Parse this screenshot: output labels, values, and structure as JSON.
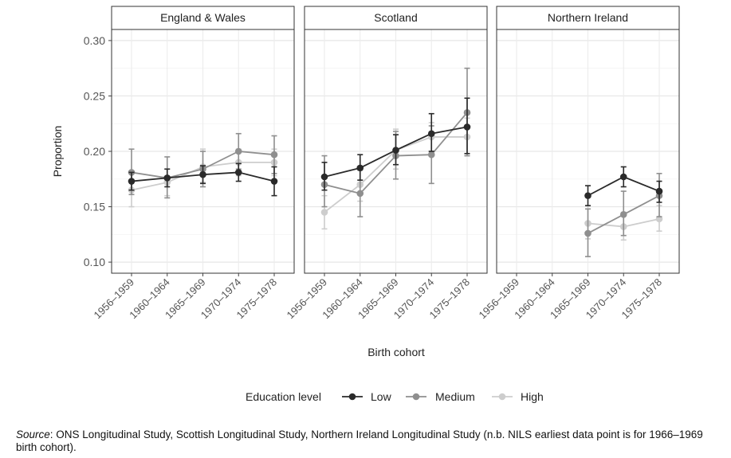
{
  "chart_data": {
    "type": "line",
    "ylabel": "Proportion",
    "xlabel": "Birth cohort",
    "ylim": [
      0.09,
      0.31
    ],
    "yticks": [
      0.1,
      0.15,
      0.2,
      0.25,
      0.3
    ],
    "ytick_labels": [
      "0.10",
      "0.15",
      "0.20",
      "0.25",
      "0.30"
    ],
    "categories": [
      "1956–1959",
      "1960–1964",
      "1965–1969",
      "1970–1974",
      "1975–1978"
    ],
    "grid": true,
    "legend": {
      "title": "Education level",
      "placement": "bottom"
    },
    "colors": {
      "Low": "#2a2a2a",
      "Medium": "#8f8f8f",
      "High": "#cdcdcd"
    },
    "panels": [
      {
        "title": "England & Wales",
        "series": [
          {
            "name": "Low",
            "values": [
              0.173,
              0.176,
              0.179,
              0.181,
              0.173
            ],
            "lower": [
              0.165,
              0.168,
              0.171,
              0.173,
              0.16
            ],
            "upper": [
              0.181,
              0.184,
              0.187,
              0.189,
              0.186
            ]
          },
          {
            "name": "Medium",
            "values": [
              0.181,
              0.176,
              0.184,
              0.2,
              0.197
            ],
            "lower": [
              0.161,
              0.158,
              0.168,
              0.184,
              0.18
            ],
            "upper": [
              0.202,
              0.195,
              0.2,
              0.216,
              0.214
            ]
          },
          {
            "name": "High",
            "values": [
              0.165,
              0.172,
              0.186,
              0.19,
              0.19
            ],
            "lower": [
              0.15,
              0.16,
              0.172,
              0.178,
              0.178
            ],
            "upper": [
              0.18,
              0.184,
              0.202,
              0.202,
              0.202
            ]
          }
        ]
      },
      {
        "title": "Scotland",
        "series": [
          {
            "name": "Low",
            "values": [
              0.177,
              0.185,
              0.201,
              0.216,
              0.222
            ],
            "lower": [
              0.165,
              0.174,
              0.188,
              0.2,
              0.198
            ],
            "upper": [
              0.19,
              0.197,
              0.215,
              0.234,
              0.248
            ]
          },
          {
            "name": "Medium",
            "values": [
              0.17,
              0.162,
              0.196,
              0.197,
              0.235
            ],
            "lower": [
              0.15,
              0.141,
              0.175,
              0.171,
              0.196
            ],
            "upper": [
              0.196,
              0.183,
              0.218,
              0.223,
              0.275
            ]
          },
          {
            "name": "High",
            "values": [
              0.145,
              0.17,
              0.201,
              0.213,
              0.213
            ],
            "lower": [
              0.13,
              0.155,
              0.184,
              0.2,
              0.196
            ],
            "upper": [
              0.16,
              0.185,
              0.22,
              0.226,
              0.23
            ]
          }
        ]
      },
      {
        "title": "Northern Ireland",
        "series": [
          {
            "name": "Low",
            "values": [
              null,
              null,
              0.16,
              0.177,
              0.164
            ],
            "lower": [
              null,
              null,
              0.151,
              0.168,
              0.154
            ],
            "upper": [
              null,
              null,
              0.169,
              0.186,
              0.173
            ]
          },
          {
            "name": "Medium",
            "values": [
              null,
              null,
              0.126,
              0.143,
              0.16
            ],
            "lower": [
              null,
              null,
              0.105,
              0.124,
              0.141
            ],
            "upper": [
              null,
              null,
              0.148,
              0.164,
              0.18
            ]
          },
          {
            "name": "High",
            "values": [
              null,
              null,
              0.135,
              0.132,
              0.139
            ],
            "lower": [
              null,
              null,
              0.121,
              0.12,
              0.128
            ],
            "upper": [
              null,
              null,
              0.151,
              0.145,
              0.151
            ]
          }
        ]
      }
    ]
  },
  "source": {
    "label": "Source",
    "text": ": ONS Longitudinal Study, Scottish Longitudinal Study, Northern Ireland Longitudinal Study (n.b. NILS earliest data point is for 1966–1969 birth cohort)."
  }
}
